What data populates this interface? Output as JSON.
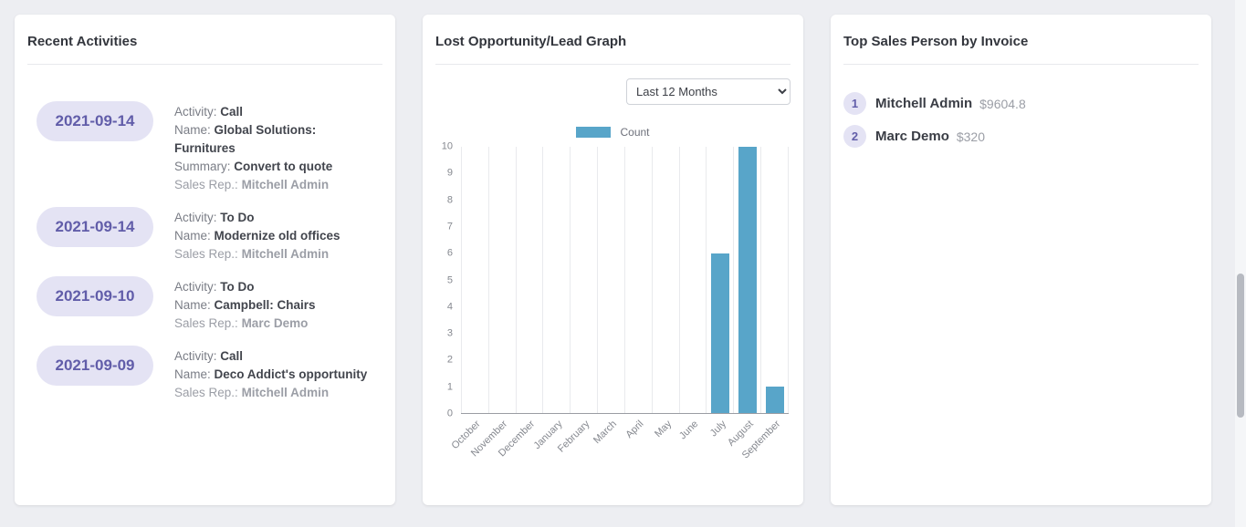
{
  "cards": {
    "recent_activities": {
      "title": "Recent Activities",
      "items": [
        {
          "date": "2021-09-14",
          "fields": [
            {
              "label": "Activity:",
              "value": "Call",
              "muted": false
            },
            {
              "label": "Name:",
              "value": "Global Solutions: Furnitures",
              "muted": false
            },
            {
              "label": "Summary:",
              "value": "Convert to quote",
              "muted": false
            },
            {
              "label": "Sales Rep.:",
              "value": "Mitchell Admin",
              "muted": true
            }
          ]
        },
        {
          "date": "2021-09-14",
          "fields": [
            {
              "label": "Activity:",
              "value": "To Do",
              "muted": false
            },
            {
              "label": "Name:",
              "value": "Modernize old offices",
              "muted": false
            },
            {
              "label": "Sales Rep.:",
              "value": "Mitchell Admin",
              "muted": true
            }
          ]
        },
        {
          "date": "2021-09-10",
          "fields": [
            {
              "label": "Activity:",
              "value": "To Do",
              "muted": false
            },
            {
              "label": "Name:",
              "value": "Campbell: Chairs",
              "muted": false
            },
            {
              "label": "Sales Rep.:",
              "value": "Marc Demo",
              "muted": true
            }
          ]
        },
        {
          "date": "2021-09-09",
          "fields": [
            {
              "label": "Activity:",
              "value": "Call",
              "muted": false
            },
            {
              "label": "Name:",
              "value": "Deco Addict's opportunity",
              "muted": false
            },
            {
              "label": "Sales Rep.:",
              "value": "Mitchell Admin",
              "muted": true
            }
          ]
        }
      ]
    },
    "lost_graph": {
      "title": "Lost Opportunity/Lead Graph",
      "filter_selected": "Last 12 Months"
    },
    "top_sales": {
      "title": "Top Sales Person by Invoice",
      "items": [
        {
          "rank": "1",
          "name": "Mitchell Admin",
          "amount": "$9604.8"
        },
        {
          "rank": "2",
          "name": "Marc Demo",
          "amount": "$320"
        }
      ]
    }
  },
  "chart_data": {
    "type": "bar",
    "title": "Lost Opportunity/Lead Graph",
    "categories": [
      "October",
      "November",
      "December",
      "January",
      "February",
      "March",
      "April",
      "May",
      "June",
      "July",
      "August",
      "September"
    ],
    "series": [
      {
        "name": "Count",
        "values": [
          0,
          0,
          0,
          0,
          0,
          0,
          0,
          0,
          0,
          6,
          10,
          1
        ]
      }
    ],
    "xlabel": "",
    "ylabel": "",
    "ylim": [
      0,
      10
    ],
    "yticks": [
      0,
      1,
      2,
      3,
      4,
      5,
      6,
      7,
      8,
      9,
      10
    ],
    "bar_color": "#58a5c9",
    "grid": "vertical",
    "legend_position": "top-center"
  },
  "colors": {
    "accent_purple": "#615da9",
    "badge_background": "#e4e3f4",
    "bar_teal": "#58a5c9",
    "page_background": "#edeef2",
    "muted_text": "#9b9ea6"
  }
}
